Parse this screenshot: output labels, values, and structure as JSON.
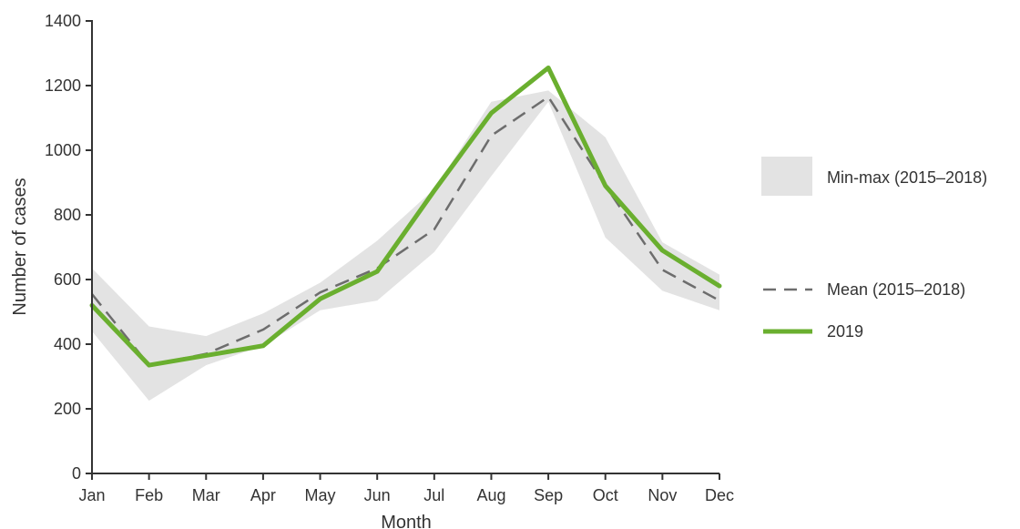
{
  "chart_data": {
    "type": "line",
    "xlabel": "Month",
    "ylabel": "Number of cases",
    "categories": [
      "Jan",
      "Feb",
      "Mar",
      "Apr",
      "May",
      "Jun",
      "Jul",
      "Aug",
      "Sep",
      "Oct",
      "Nov",
      "Dec"
    ],
    "ylim": [
      0,
      1400
    ],
    "yticks": [
      0,
      200,
      400,
      600,
      800,
      1000,
      1200,
      1400
    ],
    "grid": false,
    "legend_position": "right",
    "band": {
      "name": "Min-max (2015–2018)",
      "min": [
        440,
        225,
        335,
        395,
        505,
        535,
        685,
        920,
        1150,
        730,
        565,
        505
      ],
      "max": [
        635,
        455,
        425,
        495,
        590,
        720,
        880,
        1150,
        1185,
        1040,
        715,
        615
      ],
      "color": "#e3e3e3"
    },
    "series": [
      {
        "name": "Mean (2015–2018)",
        "values": [
          555,
          335,
          370,
          445,
          560,
          635,
          755,
          1045,
          1165,
          890,
          630,
          535
        ],
        "color": "#6d6d6d",
        "style": "dashed"
      },
      {
        "name": "2019",
        "values": [
          520,
          335,
          365,
          395,
          540,
          625,
          875,
          1115,
          1255,
          890,
          690,
          580
        ],
        "color": "#6aaf2f",
        "style": "solid"
      }
    ]
  }
}
